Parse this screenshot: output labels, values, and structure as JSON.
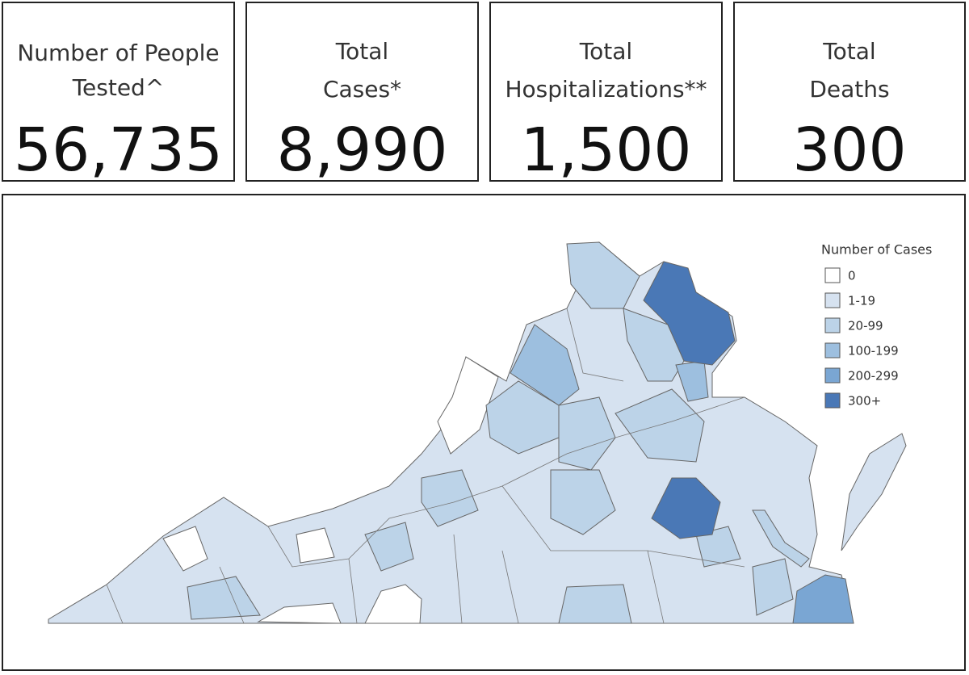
{
  "cards": [
    {
      "label_lines": [
        "Number of People",
        "Tested^"
      ],
      "value": "56,735"
    },
    {
      "label_lines": [
        "Total",
        "Cases*"
      ],
      "value": "8,990"
    },
    {
      "label_lines": [
        "Total",
        "Hospitalizations**"
      ],
      "value": "1,500"
    },
    {
      "label_lines": [
        "Total",
        "Deaths"
      ],
      "value": "300"
    }
  ],
  "map": {
    "legend": {
      "title": "Number of Cases",
      "items": [
        {
          "label": "0",
          "color": "#ffffff"
        },
        {
          "label": "1-19",
          "color": "#d6e2f0"
        },
        {
          "label": "20-99",
          "color": "#bcd3e8"
        },
        {
          "label": "100-199",
          "color": "#9dbfdf"
        },
        {
          "label": "200-299",
          "color": "#7aa6d3"
        },
        {
          "label": "300+",
          "color": "#4a78b6"
        }
      ]
    }
  }
}
